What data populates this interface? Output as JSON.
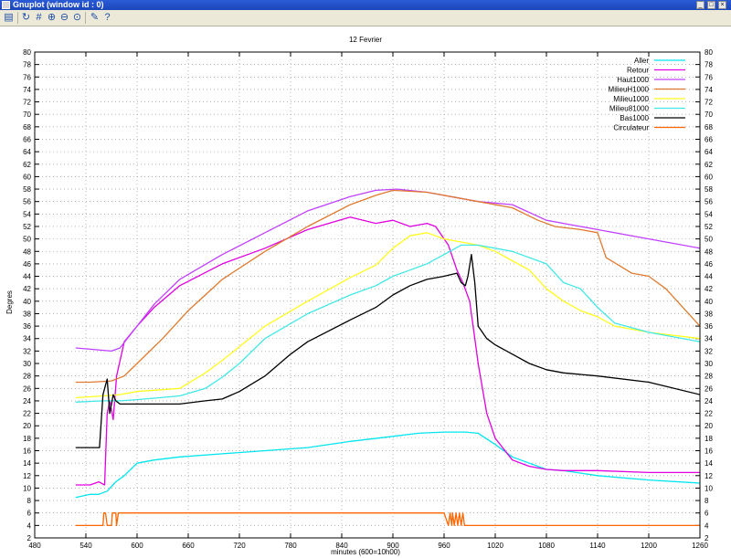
{
  "window": {
    "title": "Gnuplot (window id : 0)",
    "minimize": "_",
    "maximize": "□",
    "close": "×"
  },
  "toolbar": {
    "icons": [
      "copy-icon",
      "replot-icon",
      "grid-icon",
      "zoom-in-icon",
      "zoom-out-icon",
      "zoom-reset-icon",
      "options-icon",
      "help-icon"
    ]
  },
  "chart_data": {
    "type": "line",
    "title": "12 Fevrier",
    "xlabel": "minutes (600=10h00)",
    "ylabel": "Degres",
    "xlim": [
      480,
      1260
    ],
    "ylim": [
      2,
      80
    ],
    "xticks": [
      480,
      540,
      600,
      660,
      720,
      780,
      840,
      900,
      960,
      1020,
      1080,
      1140,
      1200,
      1260
    ],
    "yticks": [
      2,
      4,
      6,
      8,
      10,
      12,
      14,
      16,
      18,
      20,
      22,
      24,
      26,
      28,
      30,
      32,
      34,
      36,
      38,
      40,
      42,
      44,
      46,
      48,
      50,
      52,
      54,
      56,
      58,
      60,
      62,
      64,
      66,
      68,
      70,
      72,
      74,
      76,
      78,
      80
    ],
    "y2ticks": [
      2,
      4,
      6,
      8,
      10,
      12,
      14,
      16,
      18,
      20,
      22,
      24,
      26,
      28,
      30,
      32,
      34,
      36,
      38,
      40,
      42,
      44,
      46,
      48,
      50,
      52,
      54,
      56,
      58,
      60,
      62,
      64,
      66,
      68,
      70,
      72,
      74,
      76,
      78,
      80
    ],
    "grid": true,
    "legend_position": "top-right",
    "series": [
      {
        "name": "Aller",
        "color": "#00e5ee",
        "x": [
          528,
          545,
          555,
          565,
          575,
          585,
          600,
          620,
          650,
          700,
          750,
          800,
          850,
          900,
          930,
          960,
          985,
          1000,
          1020,
          1040,
          1060,
          1080,
          1100,
          1140,
          1200,
          1260
        ],
        "y": [
          8.5,
          9,
          9,
          9.5,
          11,
          12,
          14,
          14.5,
          15,
          15.5,
          16,
          16.5,
          17.5,
          18.3,
          18.8,
          19,
          19,
          18.8,
          17,
          15,
          14,
          13,
          12.8,
          12,
          11.3,
          10.8
        ]
      },
      {
        "name": "Retour",
        "color": "#e000e0",
        "x": [
          528,
          545,
          555,
          562,
          565,
          568,
          572,
          576,
          585,
          600,
          620,
          650,
          700,
          750,
          800,
          850,
          880,
          900,
          920,
          940,
          950,
          965,
          975,
          982,
          990,
          995,
          1000,
          1010,
          1020,
          1040,
          1060,
          1080,
          1100,
          1140,
          1200,
          1260
        ],
        "y": [
          10.5,
          10.5,
          11,
          10.5,
          22,
          24,
          21,
          28,
          33.5,
          36,
          39,
          42.5,
          46,
          48.5,
          51.5,
          53.5,
          52.5,
          53,
          52,
          52.5,
          52,
          49,
          45,
          43,
          40,
          35,
          30,
          22,
          18,
          14.5,
          13.5,
          13,
          12.8,
          12.8,
          12.5,
          12.5
        ]
      },
      {
        "name": "Haut1000",
        "color": "#c040ff",
        "x": [
          528,
          570,
          580,
          600,
          620,
          650,
          700,
          750,
          800,
          850,
          880,
          905,
          940,
          980,
          1000,
          1040,
          1080,
          1100,
          1140,
          1200,
          1260
        ],
        "y": [
          32.5,
          32,
          32.5,
          36,
          39.5,
          43.5,
          47.5,
          51,
          54.5,
          56.8,
          57.8,
          58,
          57.5,
          56.5,
          56,
          55.5,
          53,
          52.5,
          51.5,
          50,
          48.5
        ]
      },
      {
        "name": "MilieuH1000",
        "color": "#e07a30",
        "x": [
          528,
          545,
          570,
          585,
          600,
          630,
          660,
          700,
          750,
          800,
          850,
          880,
          900,
          940,
          980,
          1000,
          1040,
          1070,
          1090,
          1120,
          1140,
          1150,
          1180,
          1200,
          1220,
          1240,
          1260
        ],
        "y": [
          27,
          27,
          27.2,
          28,
          30,
          34,
          38.5,
          43.5,
          48,
          52,
          55.5,
          57,
          57.8,
          57.5,
          56.5,
          56,
          55,
          53,
          52,
          51.5,
          51,
          47,
          44.5,
          44,
          42,
          39,
          36
        ]
      },
      {
        "name": "Milieu1000",
        "color": "#ffff20",
        "x": [
          528,
          560,
          580,
          600,
          650,
          680,
          700,
          750,
          800,
          850,
          880,
          900,
          920,
          940,
          960,
          980,
          1000,
          1020,
          1040,
          1060,
          1080,
          1100,
          1120,
          1140,
          1160,
          1180,
          1200,
          1260
        ],
        "y": [
          24.5,
          24.8,
          25,
          25.5,
          26,
          28.5,
          30.5,
          36,
          40,
          43.8,
          45.8,
          48.5,
          50.5,
          51,
          50,
          49.5,
          49,
          48,
          46.5,
          45,
          42,
          40,
          38.5,
          37.5,
          36,
          35.5,
          35,
          34
        ]
      },
      {
        "name": "Milieu81000",
        "color": "#40e8e8",
        "x": [
          528,
          560,
          580,
          600,
          650,
          680,
          700,
          720,
          750,
          800,
          850,
          880,
          900,
          920,
          940,
          960,
          980,
          1000,
          1040,
          1080,
          1100,
          1120,
          1140,
          1160,
          1200,
          1260
        ],
        "y": [
          23.8,
          24,
          24,
          24.2,
          24.8,
          26,
          27.8,
          30,
          34,
          38,
          41,
          42.5,
          44,
          45,
          46,
          47.5,
          49,
          49,
          48,
          46,
          43,
          42,
          39,
          36.5,
          35,
          33.5
        ]
      },
      {
        "name": "Bas1000",
        "color": "#000000",
        "x": [
          528,
          545,
          556,
          560,
          565,
          568,
          572,
          575,
          580,
          600,
          630,
          650,
          680,
          700,
          720,
          750,
          780,
          800,
          850,
          880,
          900,
          920,
          940,
          960,
          975,
          980,
          985,
          988,
          992,
          996,
          1000,
          1010,
          1020,
          1040,
          1060,
          1080,
          1100,
          1140,
          1200,
          1260
        ],
        "y": [
          16.5,
          16.5,
          16.5,
          25,
          27.5,
          22,
          25,
          24,
          23.5,
          23.5,
          23.5,
          23.5,
          24,
          24.3,
          25.5,
          28,
          31.5,
          33.5,
          37,
          39,
          41,
          42.5,
          43.5,
          44,
          44.5,
          43,
          42.5,
          44,
          47.5,
          43,
          36,
          34,
          33,
          31.5,
          30,
          29,
          28.5,
          28,
          27,
          25
        ]
      },
      {
        "name": "Circulateur",
        "color": "#ff6600",
        "x": [
          528,
          560,
          561,
          563,
          565,
          567,
          568,
          570,
          571,
          575,
          576,
          578,
          580,
          960,
          965,
          967,
          969,
          970,
          972,
          974,
          976,
          978,
          980,
          982,
          984,
          1260
        ],
        "y": [
          4,
          4,
          6,
          6,
          4,
          4,
          4,
          4,
          6,
          6,
          4,
          6,
          6,
          6,
          4,
          6,
          4,
          6,
          4,
          6,
          4,
          6,
          4,
          6,
          4,
          4
        ]
      }
    ]
  }
}
